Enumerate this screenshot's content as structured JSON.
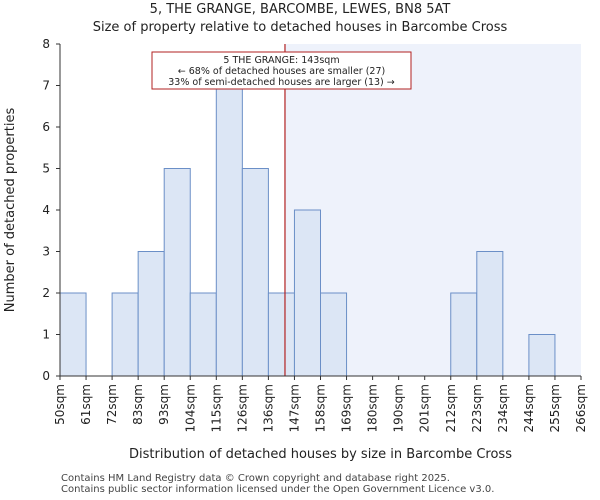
{
  "chart_data": {
    "type": "bar",
    "title": "5, THE GRANGE, BARCOMBE, LEWES, BN8 5AT",
    "subtitle": "Size of property relative to detached houses in Barcombe Cross",
    "xlabel": "Distribution of detached houses by size in Barcombe Cross",
    "ylabel": "Number of detached properties",
    "ylim": [
      0,
      8
    ],
    "yticks": [
      "0",
      "1",
      "2",
      "3",
      "4",
      "5",
      "6",
      "7",
      "8"
    ],
    "bin_edges": [
      "50sqm",
      "61sqm",
      "72sqm",
      "83sqm",
      "93sqm",
      "104sqm",
      "115sqm",
      "126sqm",
      "136sqm",
      "147sqm",
      "158sqm",
      "169sqm",
      "180sqm",
      "190sqm",
      "201sqm",
      "212sqm",
      "223sqm",
      "234sqm",
      "244sqm",
      "255sqm",
      "266sqm"
    ],
    "values": [
      2,
      0,
      2,
      3,
      5,
      2,
      7,
      5,
      2,
      4,
      2,
      0,
      0,
      0,
      0,
      2,
      3,
      0,
      1,
      0
    ],
    "marker": {
      "value_sqm": 143,
      "label_line1": "5 THE GRANGE: 143sqm",
      "label_line2": "← 68% of detached houses are smaller (27)",
      "label_line3": "33% of semi-detached houses are larger (13) →"
    },
    "grid": false,
    "colors": {
      "bar_fill": "#dce6f5",
      "bar_stroke": "#6b8fc7",
      "highlight_region": "#eef2fb",
      "marker_line": "#b22222",
      "axis": "#333333"
    }
  },
  "footer": {
    "line1": "Contains HM Land Registry data © Crown copyright and database right 2025.",
    "line2": "Contains public sector information licensed under the Open Government Licence v3.0."
  }
}
